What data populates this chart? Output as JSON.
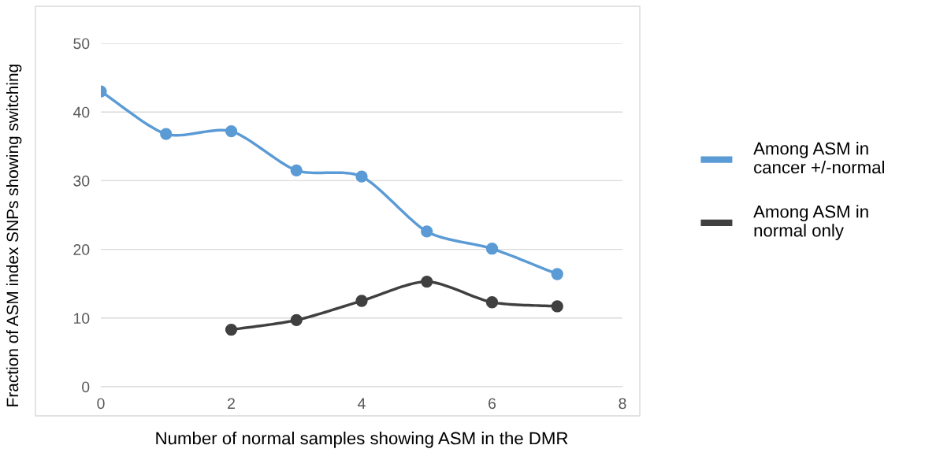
{
  "chart_data": {
    "type": "line",
    "xlabel": "Number of normal samples showing ASM in the DMR",
    "ylabel": "Fraction of ASM index SNPs showing switching",
    "xlim": [
      0,
      8
    ],
    "xticks": [
      0,
      2,
      4,
      6,
      8
    ],
    "ylim": [
      0,
      50
    ],
    "yticks": [
      0,
      10,
      20,
      30,
      40,
      50
    ],
    "grid": "y",
    "legend": "right",
    "marker": "circle",
    "line_style": "solid",
    "series": [
      {
        "name": "Among ASM in cancer +/-normal",
        "color": "#5b9bd5",
        "x": [
          0,
          1,
          2,
          3,
          4,
          5,
          6,
          7
        ],
        "values": [
          43.0,
          36.8,
          37.2,
          31.5,
          30.6,
          22.6,
          20.1,
          16.4
        ]
      },
      {
        "name": "Among ASM in normal only",
        "color": "#404040",
        "x": [
          2,
          3,
          4,
          5,
          6,
          7
        ],
        "values": [
          8.3,
          9.7,
          12.5,
          15.3,
          12.3,
          11.7
        ]
      }
    ]
  }
}
